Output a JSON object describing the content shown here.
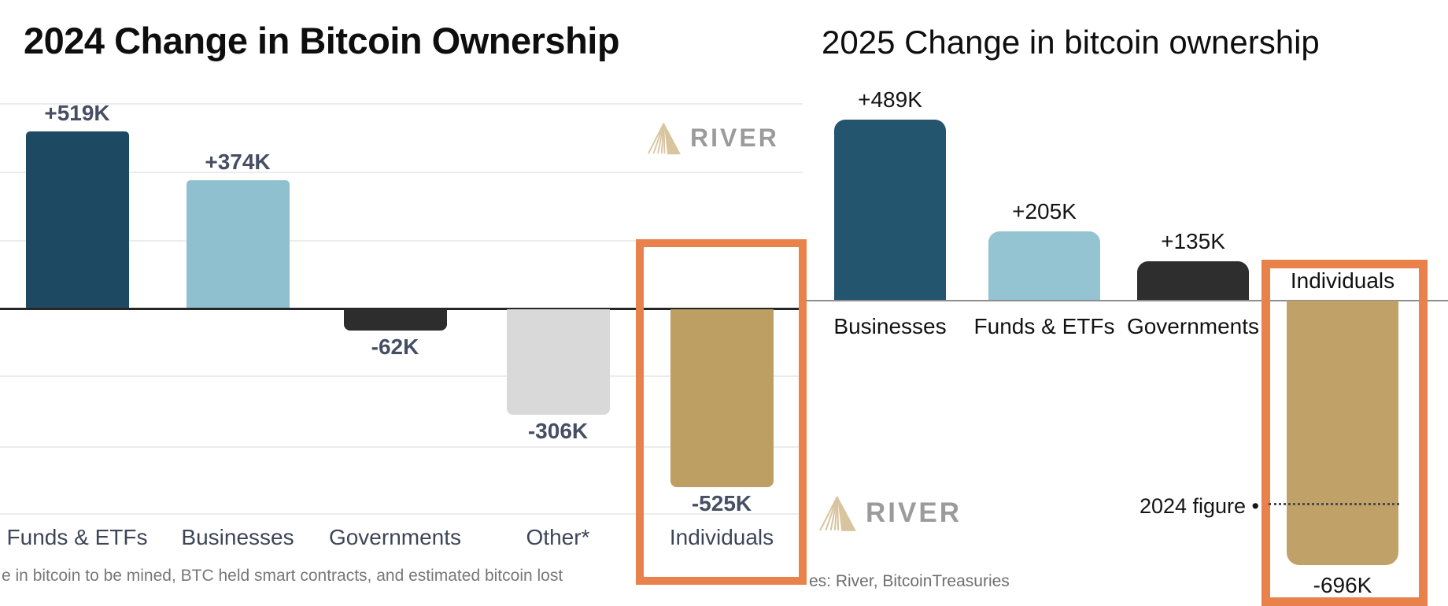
{
  "page": {
    "background": "#ffffff"
  },
  "branding": {
    "logo_text": "RIVER",
    "logo_triangle_color": "#d8c5a0",
    "logo_text_color": "#9b9b9b"
  },
  "chart_data": [
    {
      "type": "bar",
      "title": "2024 Change in Bitcoin Ownership",
      "categories": [
        "Funds & ETFs",
        "Businesses",
        "Governments",
        "Other*",
        "Individuals"
      ],
      "values": [
        519000,
        374000,
        -62000,
        -306000,
        -525000
      ],
      "value_labels": [
        "+519K",
        "+374K",
        "-62K",
        "-306K",
        "-525K"
      ],
      "bar_colors": [
        "#1d4a62",
        "#8fc0cf",
        "#2d2d2d",
        "#d9d9d9",
        "#bd9e63"
      ],
      "xlabel": "",
      "ylabel": "",
      "ylim": [
        -600000,
        600000
      ],
      "grid": "horizontal gridlines every 200K, unlabeled",
      "legend": "none",
      "highlighted_category": "Individuals",
      "highlight_color": "#e8814a",
      "footnote": "e in bitcoin to be mined, BTC held smart contracts, and estimated bitcoin lost",
      "logo": "RIVER"
    },
    {
      "type": "bar",
      "title": "2025 Change in bitcoin ownership",
      "categories": [
        "Businesses",
        "Funds & ETFs",
        "Governments",
        "Individuals"
      ],
      "values": [
        489000,
        205000,
        135000,
        -696000
      ],
      "value_labels": [
        "+489K",
        "+205K",
        "+135K",
        "-696K"
      ],
      "bar_colors": [
        "#24556e",
        "#94c3d2",
        "#2e2e2e",
        "#c0a269"
      ],
      "xlabel": "",
      "ylabel": "",
      "grid": "off",
      "legend": "none",
      "highlighted_category": "Individuals",
      "highlight_color": "#e8814a",
      "annotation": {
        "label": "2024 figure •",
        "style": "dotted leader line across Individuals bar"
      },
      "source_note": "es: River, BitcoinTreasuries",
      "logo": "RIVER"
    }
  ]
}
